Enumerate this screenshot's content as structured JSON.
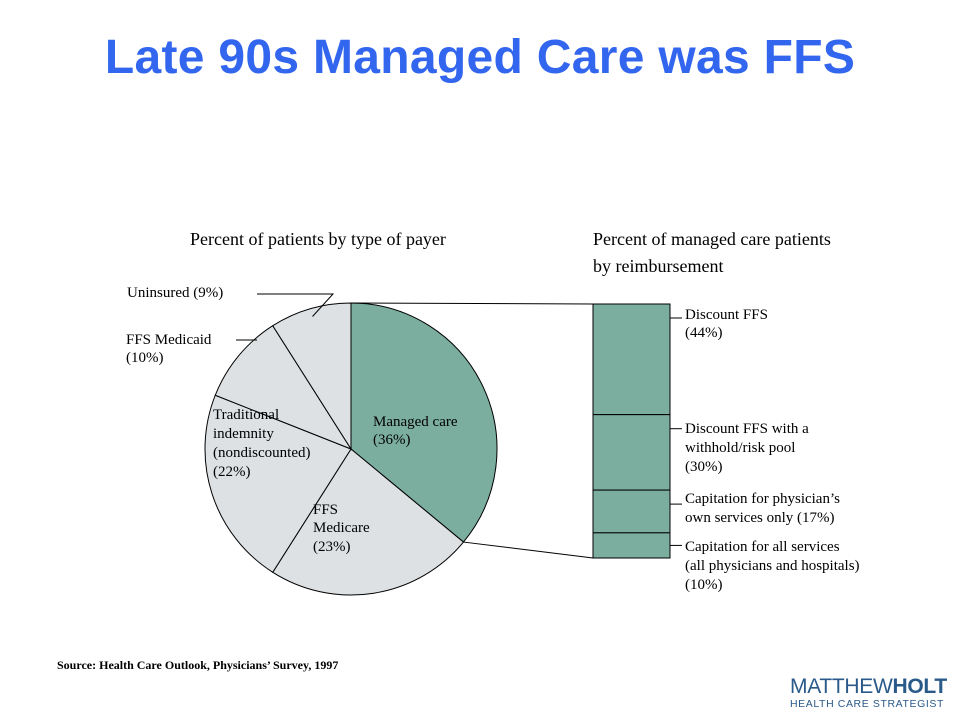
{
  "slide": {
    "title": "Late 90s Managed Care was FFS",
    "source": "Source: Health Care Outlook, Physicians’ Survey, 1997"
  },
  "logo": {
    "name_light": "MATTHEW",
    "name_bold": "HOLT",
    "tagline": "HEALTH CARE STRATEGIST"
  },
  "colors": {
    "managed": "#7bae9e",
    "other": "#dde1e4",
    "stroke": "#000000",
    "title": "#3366ee",
    "logo": "#2a5a8a"
  },
  "chart_data": [
    {
      "type": "pie",
      "title": "Percent of patients by type of payer",
      "slices": [
        {
          "label": "Managed care",
          "value": 36,
          "value_label": "(36%)"
        },
        {
          "label": "FFS Medicare",
          "value": 23,
          "value_label": "(23%)"
        },
        {
          "label": "Traditional indemnity (nondiscounted)",
          "value": 22,
          "value_label": "(22%)"
        },
        {
          "label": "FFS Medicaid",
          "value": 10,
          "value_label": "(10%)"
        },
        {
          "label": "Uninsured",
          "value": 9,
          "value_label": "(9%)"
        }
      ]
    },
    {
      "type": "bar",
      "stacked": true,
      "title": "Percent of managed care patients by reimbursement",
      "categories": [
        "Managed care"
      ],
      "series": [
        {
          "name": "Discount FFS",
          "value": 44,
          "value_label": "(44%)"
        },
        {
          "name": "Discount FFS with a withhold/risk pool",
          "value": 30,
          "value_label": "(30%)"
        },
        {
          "name": "Capitation for physician’s own services only",
          "value": 17,
          "value_label": "(17%)"
        },
        {
          "name": "Capitation for all services (all physicians and hospitals)",
          "value": 10,
          "value_label": "(10%)"
        }
      ]
    }
  ],
  "text": {
    "pie_title": "Percent of patients by type of payer",
    "bar_title_1": "Percent of managed care patients",
    "bar_title_2": "by reimbursement",
    "slice_managed_1": "Managed care",
    "slice_managed_2": "(36%)",
    "slice_medicare_1": "FFS",
    "slice_medicare_2": "Medicare",
    "slice_medicare_3": "(23%)",
    "slice_indemnity_1": "Traditional",
    "slice_indemnity_2": "indemnity",
    "slice_indemnity_3": "(nondiscounted)",
    "slice_indemnity_4": "(22%)",
    "slice_medicaid_1": "FFS Medicaid",
    "slice_medicaid_2": "(10%)",
    "slice_uninsured": "Uninsured (9%)",
    "seg1_1": "Discount FFS",
    "seg1_2": "(44%)",
    "seg2_1": "Discount FFS with a",
    "seg2_2": "withhold/risk pool",
    "seg2_3": "(30%)",
    "seg3_1": "Capitation for physician’s",
    "seg3_2": "own services only (17%)",
    "seg4_1": "Capitation for all services",
    "seg4_2": "(all physicians and hospitals)",
    "seg4_3": "(10%)"
  }
}
